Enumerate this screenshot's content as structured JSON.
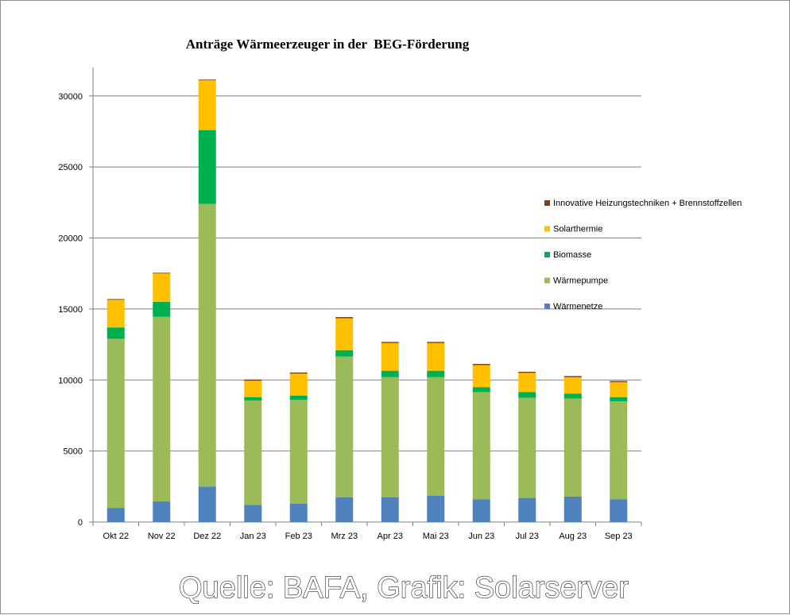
{
  "chart_data": {
    "type": "bar",
    "stacked": true,
    "title": "Anträge Wärmeerzeuger in der  BEG-Förderung",
    "xlabel": "",
    "ylabel": "",
    "ylim": [
      0,
      32000
    ],
    "yticks": [
      0,
      5000,
      10000,
      15000,
      20000,
      25000,
      30000
    ],
    "grid": true,
    "legend_position": "right",
    "categories": [
      "Okt 22",
      "Nov 22",
      "Dez 22",
      "Jan 23",
      "Feb 23",
      "Mrz 23",
      "Apr 23",
      "Mai 23",
      "Jun 23",
      "Jul 23",
      "Aug 23",
      "Sep 23"
    ],
    "series": [
      {
        "name": "Wärmenetze",
        "color": "#4f81bd",
        "values": [
          1000,
          1450,
          2500,
          1200,
          1300,
          1750,
          1750,
          1850,
          1600,
          1700,
          1800,
          1600
        ]
      },
      {
        "name": "Wärmepumpe",
        "color": "#9bbb59",
        "values": [
          11900,
          13000,
          19900,
          7350,
          7300,
          9900,
          8450,
          8350,
          7550,
          7050,
          6900,
          6900
        ]
      },
      {
        "name": "Biomasse",
        "color": "#00b050",
        "values": [
          800,
          1050,
          5200,
          250,
          300,
          450,
          450,
          450,
          350,
          400,
          350,
          300
        ]
      },
      {
        "name": "Solarthermie",
        "color": "#ffc000",
        "values": [
          1950,
          2000,
          3500,
          1150,
          1550,
          2250,
          1950,
          1950,
          1550,
          1350,
          1150,
          1050
        ]
      },
      {
        "name": "Innovative Heizungstechniken + Brennstoffzellen",
        "color": "#7f3f0f",
        "values": [
          50,
          50,
          50,
          80,
          80,
          80,
          80,
          80,
          80,
          80,
          80,
          80
        ]
      }
    ]
  },
  "source": "Quelle: BAFA, Grafik: Solarserver"
}
